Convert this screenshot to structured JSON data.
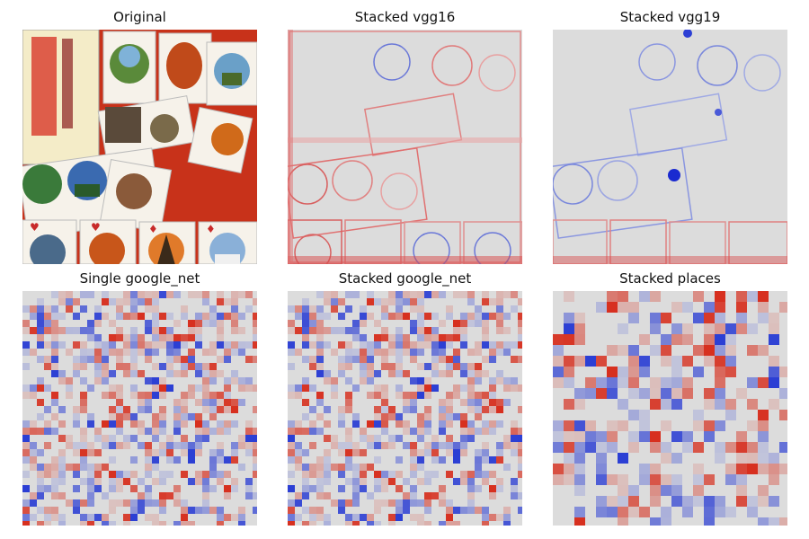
{
  "figure": {
    "panels": [
      {
        "id": "original",
        "title": "Original",
        "kind": "photo"
      },
      {
        "id": "stacked-vgg16",
        "title": "Stacked vgg16",
        "kind": "heatmap-smooth",
        "tone": "red"
      },
      {
        "id": "stacked-vgg19",
        "title": "Stacked vgg19",
        "kind": "heatmap-smooth",
        "tone": "blue"
      },
      {
        "id": "single-google-net",
        "title": "Single google_net",
        "kind": "heatmap-grid",
        "cell": 8
      },
      {
        "id": "stacked-google-net",
        "title": "Stacked google_net",
        "kind": "heatmap-grid",
        "cell": 8
      },
      {
        "id": "stacked-places",
        "title": "Stacked places",
        "kind": "heatmap-grid",
        "cell": 12
      }
    ]
  },
  "colors": {
    "map_neutral": "#dcdcdc",
    "map_positive": "#d7301f",
    "map_negative": "#2c3fd4",
    "photo_background": "#c8321a",
    "card_face": "#f6f2ea"
  }
}
